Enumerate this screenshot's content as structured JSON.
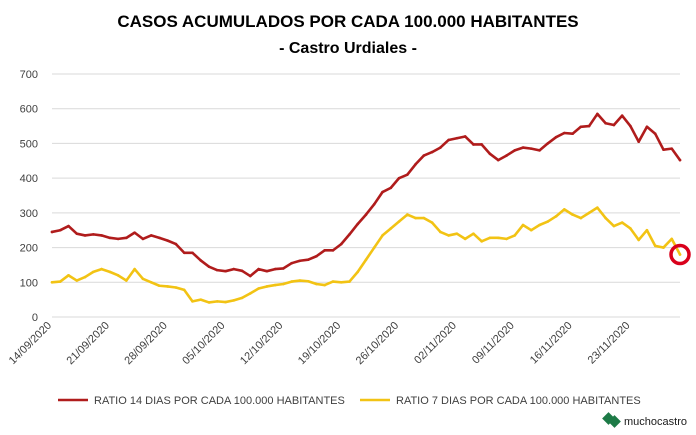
{
  "chart_data": {
    "type": "line",
    "title": "CASOS ACUMULADOS POR CADA 100.000 HABITANTES",
    "subtitle": "- Castro Urdiales -",
    "xlabel": "",
    "ylabel": "",
    "ylim": [
      0,
      700
    ],
    "y_ticks": [
      "0",
      "100",
      "200",
      "300",
      "400",
      "500",
      "600",
      "700"
    ],
    "x_ticks": [
      "14/09/2020",
      "21/09/2020",
      "28/09/2020",
      "05/10/2020",
      "12/10/2020",
      "19/10/2020",
      "26/10/2020",
      "02/11/2020",
      "09/11/2020",
      "16/11/2020",
      "23/11/2020"
    ],
    "x_start": "14/09/2020",
    "grid": "horizontal",
    "legend_position": "bottom",
    "series": [
      {
        "name": "RATIO 14 DIAS POR CADA 100.000 HABITANTES",
        "color": "#b01c1c",
        "values": [
          245,
          250,
          262,
          240,
          235,
          238,
          235,
          228,
          225,
          228,
          243,
          225,
          235,
          228,
          220,
          210,
          185,
          185,
          163,
          145,
          135,
          132,
          138,
          133,
          118,
          138,
          132,
          138,
          140,
          155,
          162,
          165,
          175,
          192,
          192,
          210,
          238,
          268,
          295,
          325,
          360,
          372,
          400,
          410,
          440,
          465,
          475,
          488,
          510,
          515,
          520,
          497,
          497,
          470,
          452,
          465,
          480,
          488,
          485,
          480,
          500,
          518,
          530,
          528,
          548,
          550,
          585,
          558,
          553,
          580,
          550,
          505,
          548,
          528,
          482,
          485,
          452
        ]
      },
      {
        "name": "RATIO 7 DIAS POR CADA 100.000 HABITANTES",
        "color": "#f2c314",
        "values": [
          100,
          102,
          120,
          105,
          115,
          130,
          138,
          130,
          120,
          105,
          138,
          110,
          100,
          90,
          88,
          85,
          78,
          45,
          50,
          42,
          45,
          43,
          48,
          55,
          68,
          82,
          88,
          92,
          95,
          102,
          105,
          103,
          95,
          92,
          102,
          100,
          102,
          130,
          165,
          200,
          235,
          255,
          275,
          295,
          285,
          285,
          272,
          245,
          235,
          240,
          225,
          240,
          218,
          228,
          228,
          225,
          235,
          265,
          250,
          265,
          275,
          290,
          310,
          295,
          285,
          300,
          315,
          285,
          262,
          272,
          255,
          222,
          250,
          205,
          200,
          225,
          180
        ]
      }
    ],
    "highlight_marker": {
      "color": "#d9001b",
      "series_index": 1,
      "point": "last"
    }
  },
  "brand": {
    "name": "muchocastro",
    "color": "#1d7a46"
  }
}
